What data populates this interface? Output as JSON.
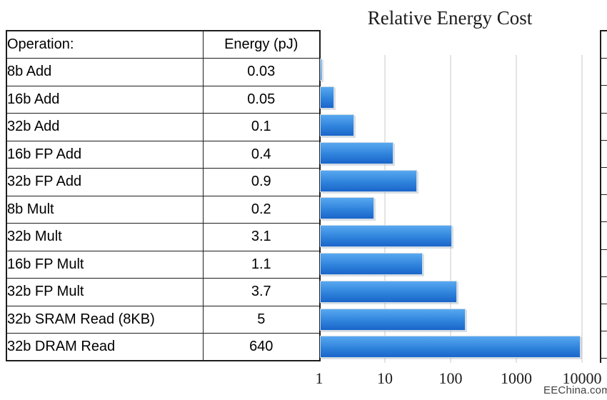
{
  "watermark": "EEChina.com",
  "table": {
    "headers": [
      "Operation:",
      "Energy (pJ)"
    ],
    "rows": [
      {
        "operation": "8b Add",
        "energy": "0.03"
      },
      {
        "operation": "16b Add",
        "energy": "0.05"
      },
      {
        "operation": "32b Add",
        "energy": "0.1"
      },
      {
        "operation": "16b FP Add",
        "energy": "0.4"
      },
      {
        "operation": "32b FP Add",
        "energy": "0.9"
      },
      {
        "operation": "8b Mult",
        "energy": "0.2"
      },
      {
        "operation": "32b Mult",
        "energy": "3.1"
      },
      {
        "operation": "16b FP Mult",
        "energy": "1.1"
      },
      {
        "operation": "32b FP Mult",
        "energy": "3.7"
      },
      {
        "operation": "32b SRAM Read (8KB)",
        "energy": "5"
      },
      {
        "operation": "32b DRAM Read",
        "energy": "640"
      }
    ]
  },
  "chart_data": {
    "type": "bar",
    "orientation": "horizontal",
    "title": "Relative Energy Cost",
    "x_scale": "log",
    "xlim": [
      1,
      10000
    ],
    "x_ticks": [
      1,
      10,
      100,
      1000,
      10000
    ],
    "grid": true,
    "legend": false,
    "baseline_energy_pj": 0.03,
    "categories": [
      "8b Add",
      "16b Add",
      "32b Add",
      "16b FP Add",
      "32b FP Add",
      "8b Mult",
      "32b Mult",
      "16b FP Mult",
      "32b FP Mult",
      "32b SRAM Read (8KB)",
      "32b DRAM Read"
    ],
    "energy_pj": [
      0.03,
      0.05,
      0.1,
      0.4,
      0.9,
      0.2,
      3.1,
      1.1,
      3.7,
      5,
      640
    ],
    "relative_energy": [
      1,
      1.7,
      3.3,
      13.3,
      30,
      6.7,
      103.3,
      36.7,
      123.3,
      166.7,
      21333.3
    ],
    "bars_clipped_at_axis_max": true,
    "bar_color_top": "#58a8f0",
    "bar_color_bottom": "#1a65ca",
    "gridline_color": "#e4e4e4"
  }
}
